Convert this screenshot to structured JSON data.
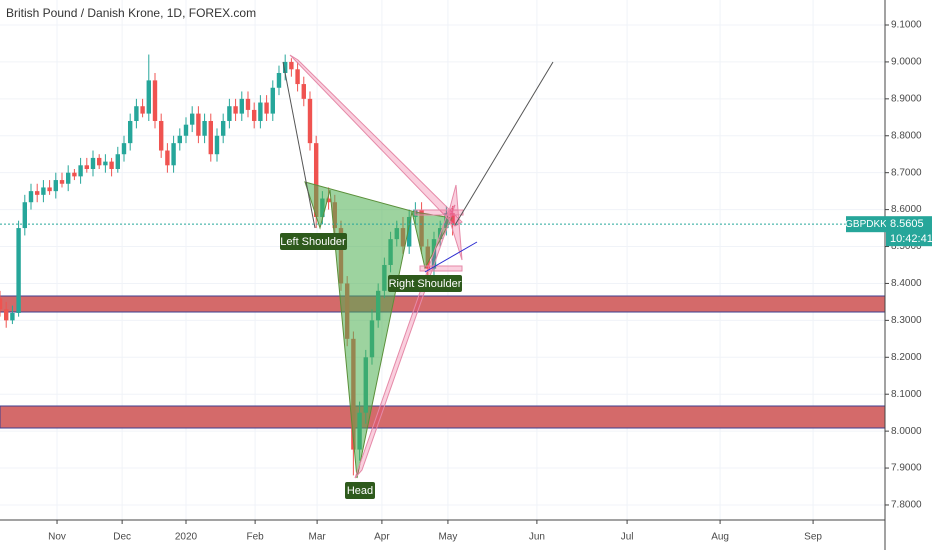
{
  "chart_data": {
    "type": "candlestick",
    "title": "British Pound / Danish Krone, 1D, FOREX.com",
    "symbol": "GBPDKK",
    "last_price": 8.5605,
    "countdown": "10:42:41",
    "annotations": [
      "Left Shoulder",
      "Head",
      "Right Shoulder"
    ],
    "up_color": "#26a69a",
    "down_color": "#ef5350",
    "grid": true,
    "x": [
      0,
      2,
      4,
      6,
      8,
      10,
      12,
      14,
      16,
      18,
      20,
      22,
      24,
      26,
      28,
      30,
      32,
      34,
      36,
      38,
      40,
      42,
      44,
      46,
      48,
      50,
      52,
      54,
      56,
      58,
      60,
      62,
      64,
      66,
      68,
      70,
      72,
      74,
      76,
      78,
      80,
      82,
      84,
      86,
      88,
      90,
      92,
      94,
      96,
      98,
      100,
      102,
      104,
      106,
      108,
      110,
      112,
      114,
      116,
      118,
      120,
      122,
      124,
      126,
      128,
      130,
      132,
      134,
      136,
      138,
      140,
      142,
      144,
      146
    ],
    "open": [
      8.36,
      8.33,
      8.3,
      8.32,
      8.55,
      8.62,
      8.65,
      8.64,
      8.66,
      8.65,
      8.68,
      8.67,
      8.7,
      8.69,
      8.72,
      8.71,
      8.74,
      8.72,
      8.73,
      8.71,
      8.75,
      8.78,
      8.84,
      8.88,
      8.86,
      8.95,
      8.84,
      8.76,
      8.72,
      8.78,
      8.8,
      8.83,
      8.86,
      8.8,
      8.84,
      8.75,
      8.8,
      8.84,
      8.88,
      8.86,
      8.9,
      8.87,
      8.84,
      8.89,
      8.86,
      8.93,
      8.97,
      9.0,
      8.98,
      8.94,
      8.9,
      8.78,
      8.58,
      8.63,
      8.62,
      8.55,
      8.4,
      8.25,
      7.95,
      8.05,
      8.2,
      8.3,
      8.38,
      8.45,
      8.52,
      8.55,
      8.5,
      8.58,
      8.6,
      8.5,
      8.44,
      8.52,
      8.55,
      8.59
    ],
    "high": [
      8.38,
      8.35,
      8.34,
      8.57,
      8.64,
      8.67,
      8.67,
      8.68,
      8.68,
      8.7,
      8.7,
      8.72,
      8.71,
      8.74,
      8.74,
      8.76,
      8.75,
      8.75,
      8.74,
      8.77,
      8.8,
      8.86,
      8.9,
      8.9,
      9.02,
      8.97,
      8.86,
      8.78,
      8.8,
      8.82,
      8.85,
      8.88,
      8.88,
      8.86,
      8.86,
      8.82,
      8.86,
      8.9,
      8.9,
      8.92,
      8.92,
      8.89,
      8.91,
      8.91,
      8.95,
      8.99,
      9.02,
      9.01,
      9.0,
      8.96,
      8.92,
      8.8,
      8.65,
      8.66,
      8.64,
      8.57,
      8.42,
      8.27,
      8.08,
      8.22,
      8.33,
      8.4,
      8.47,
      8.54,
      8.57,
      8.58,
      8.6,
      8.62,
      8.62,
      8.52,
      8.54,
      8.57,
      8.61,
      8.61
    ],
    "low": [
      8.31,
      8.28,
      8.29,
      8.31,
      8.53,
      8.6,
      8.62,
      8.62,
      8.64,
      8.63,
      8.66,
      8.65,
      8.68,
      8.67,
      8.7,
      8.69,
      8.71,
      8.7,
      8.69,
      8.7,
      8.73,
      8.76,
      8.82,
      8.85,
      8.84,
      8.82,
      8.74,
      8.7,
      8.7,
      8.76,
      8.78,
      8.81,
      8.78,
      8.78,
      8.73,
      8.73,
      8.78,
      8.82,
      8.84,
      8.84,
      8.85,
      8.82,
      8.82,
      8.84,
      8.84,
      8.91,
      8.95,
      8.96,
      8.92,
      8.88,
      8.76,
      8.55,
      8.56,
      8.6,
      8.53,
      8.38,
      8.23,
      7.88,
      7.92,
      8.02,
      8.18,
      8.28,
      8.36,
      8.43,
      8.5,
      8.48,
      8.48,
      8.56,
      8.48,
      8.42,
      8.42,
      8.5,
      8.53,
      8.53
    ],
    "close": [
      8.33,
      8.3,
      8.32,
      8.55,
      8.62,
      8.65,
      8.64,
      8.66,
      8.65,
      8.68,
      8.67,
      8.7,
      8.69,
      8.72,
      8.71,
      8.74,
      8.72,
      8.73,
      8.71,
      8.75,
      8.78,
      8.84,
      8.88,
      8.86,
      8.95,
      8.84,
      8.76,
      8.72,
      8.78,
      8.8,
      8.83,
      8.86,
      8.8,
      8.84,
      8.75,
      8.8,
      8.84,
      8.88,
      8.86,
      8.9,
      8.87,
      8.84,
      8.89,
      8.86,
      8.93,
      8.97,
      9.0,
      8.98,
      8.94,
      8.9,
      8.78,
      8.58,
      8.63,
      8.62,
      8.55,
      8.4,
      8.25,
      7.95,
      8.05,
      8.2,
      8.3,
      8.38,
      8.45,
      8.52,
      8.55,
      8.5,
      8.58,
      8.6,
      8.5,
      8.44,
      8.52,
      8.55,
      8.59,
      8.56
    ],
    "xlim": [
      0,
      285.5
    ],
    "xticks": [
      {
        "value": 18.4,
        "label": "Nov"
      },
      {
        "value": 39.4,
        "label": "Dec"
      },
      {
        "value": 60,
        "label": "2020"
      },
      {
        "value": 82.3,
        "label": "Feb"
      },
      {
        "value": 102.3,
        "label": "Mar"
      },
      {
        "value": 123.2,
        "label": "Apr"
      },
      {
        "value": 144.5,
        "label": "May"
      },
      {
        "value": 173.2,
        "label": "Jun"
      },
      {
        "value": 202.3,
        "label": "Jul"
      },
      {
        "value": 232.3,
        "label": "Aug"
      },
      {
        "value": 262.3,
        "label": "Sep"
      }
    ],
    "ylim": [
      7.7593,
      9.1677
    ],
    "yticks": [
      {
        "value": 9.1,
        "label": "9.1000"
      },
      {
        "value": 9.0,
        "label": "9.0000"
      },
      {
        "value": 8.9,
        "label": "8.9000"
      },
      {
        "value": 8.8,
        "label": "8.8000"
      },
      {
        "value": 8.7,
        "label": "8.7000"
      },
      {
        "value": 8.6,
        "label": "8.6000"
      },
      {
        "value": 8.5,
        "label": "8.5000"
      },
      {
        "value": 8.4,
        "label": "8.4000"
      },
      {
        "value": 8.3,
        "label": "8.3000"
      },
      {
        "value": 8.2,
        "label": "8.2000"
      },
      {
        "value": 8.1,
        "label": "8.1000"
      },
      {
        "value": 8.0,
        "label": "8.0000"
      },
      {
        "value": 7.9,
        "label": "7.9000"
      },
      {
        "value": 7.8,
        "label": "7.8000"
      }
    ]
  }
}
